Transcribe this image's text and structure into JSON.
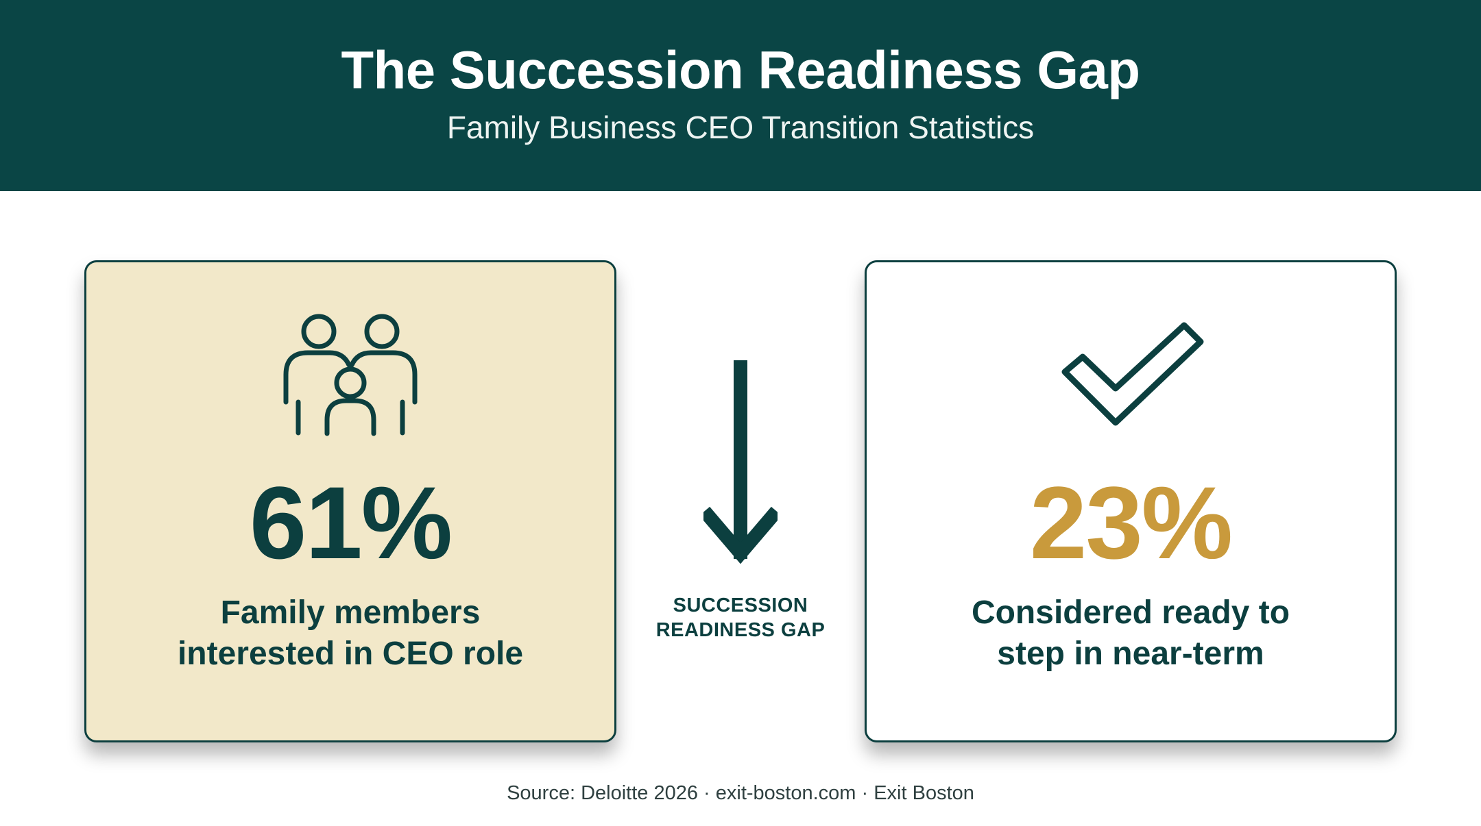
{
  "header": {
    "title": "The Succession Readiness Gap",
    "subtitle": "Family Business CEO Transition Statistics"
  },
  "cards": [
    {
      "icon": "family-icon",
      "value": "61%",
      "description_line1": "Family members",
      "description_line2": "interested in CEO role",
      "background_color": "#f2e8c9",
      "value_color": "#0c3f3f"
    },
    {
      "icon": "checkmark-icon",
      "value": "23%",
      "description_line1": "Considered ready to",
      "description_line2": "step in near-term",
      "background_color": "#ffffff",
      "value_color": "#c99a3c"
    }
  ],
  "gap": {
    "icon": "arrow-down-icon",
    "label_line1": "SUCCESSION",
    "label_line2": "READINESS GAP"
  },
  "footer": {
    "source": "Source: Deloitte 2026 · exit-boston.com · Exit Boston"
  },
  "colors": {
    "header_bg": "#0a4545",
    "primary": "#0c3f3f",
    "accent_gold": "#c99a3c",
    "card_cream": "#f2e8c9"
  }
}
